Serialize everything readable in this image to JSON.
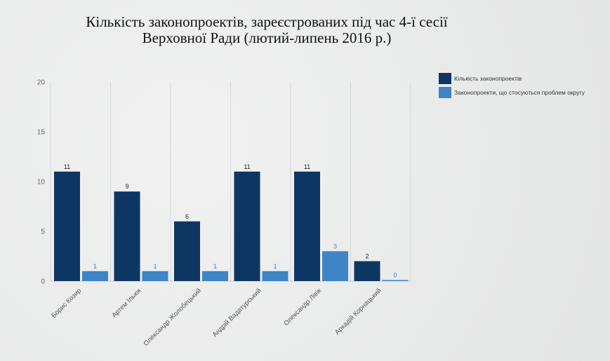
{
  "chart_data": {
    "type": "bar",
    "title_lines": [
      "Кількість законопроектів, зареєстрованих під час 4-ї сесії",
      "Верховної Ради (лютий-липень 2016 р.)"
    ],
    "categories": [
      "Борис Козир",
      "Артем Ільюк",
      "Олександр Жолобецький",
      "Андрій Вадатурський",
      "Олександр Лівік",
      "Аркадій Корнацький"
    ],
    "series": [
      {
        "name": "Кількість законопроектів",
        "color": "#0d3663",
        "label_color": "#222222",
        "values": [
          11,
          9,
          6,
          11,
          11,
          2
        ]
      },
      {
        "name": "Законопроекти, що стосуються проблем округу",
        "color": "#3d85c6",
        "label_color": "#3d85c6",
        "values": [
          1,
          1,
          1,
          1,
          3,
          0
        ]
      }
    ],
    "ylim": [
      0,
      20
    ],
    "yticks": [
      0,
      5,
      10,
      15,
      20
    ],
    "grid": true,
    "legend_position": "right"
  }
}
